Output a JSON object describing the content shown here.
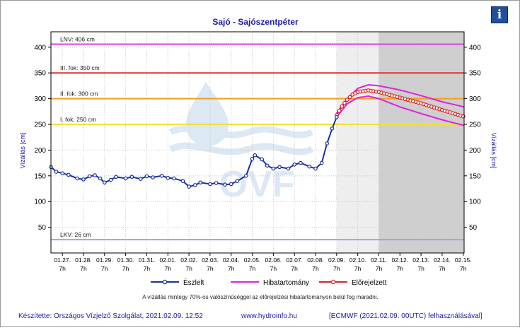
{
  "page": {
    "footer_left": "Készítette: Országos Vízjelző Szolgálat, 2021.02.09. 12:52",
    "footer_middle": "www.hydroinfo.hu",
    "footer_right": "[ECMWF (2021.02.09. 00UTC) felhasználásával]",
    "info_icon": "info-icon",
    "watermark": "OVF"
  },
  "chart_data": {
    "type": "line",
    "title": "Sajó - Sajószentpéter",
    "ylabel_left": "Vízállás [cm]",
    "ylabel_right": "Vízállás [cm]",
    "ylim": [
      0,
      430
    ],
    "yticks": [
      50,
      100,
      150,
      200,
      250,
      300,
      350,
      400
    ],
    "x_range_days": [
      "2021-01-26 18:00",
      "2021-02-15 08:00"
    ],
    "x_tick_labels": [
      "01.27.",
      "01.28.",
      "01.29.",
      "01.30.",
      "01.31.",
      "02.01.",
      "02.02.",
      "02.03.",
      "02.04.",
      "02.05.",
      "02.06.",
      "02.07.",
      "02.08.",
      "02.09.",
      "02.10.",
      "02.11.",
      "02.12.",
      "02.13.",
      "02.14.",
      "02.15."
    ],
    "x_tick_hour": "7h",
    "thresholds": [
      {
        "label": "LNV: 406 cm",
        "value": 406,
        "color": "#e040e0"
      },
      {
        "label": "III. fok: 350 cm",
        "value": 350,
        "color": "#e03030"
      },
      {
        "label": "II. fok: 300 cm",
        "value": 300,
        "color": "#f0a020"
      },
      {
        "label": "I. fok: 250 cm",
        "value": 250,
        "color": "#f0e040"
      },
      {
        "label": "LKV: 26 cm",
        "value": 26,
        "color": "#a0a0f0"
      }
    ],
    "shading": [
      {
        "from": "2021-02-09 07:00",
        "to": "2021-02-11 07:00",
        "color": "#eeeeee"
      },
      {
        "from": "2021-02-11 07:00",
        "to": "2021-02-15 08:00",
        "color": "#cfcfcf"
      }
    ],
    "series": [
      {
        "name": "Észlelt",
        "color": "#1a2fa0",
        "points": [
          [
            "2021-01-26 18:00",
            167
          ],
          [
            "2021-01-27 00:00",
            158
          ],
          [
            "2021-01-27 07:00",
            155
          ],
          [
            "2021-01-27 14:00",
            152
          ],
          [
            "2021-01-28 00:00",
            145
          ],
          [
            "2021-01-28 07:00",
            143
          ],
          [
            "2021-01-28 14:00",
            149
          ],
          [
            "2021-01-28 20:00",
            151
          ],
          [
            "2021-01-29 02:00",
            145
          ],
          [
            "2021-01-29 07:00",
            137
          ],
          [
            "2021-01-29 14:00",
            142
          ],
          [
            "2021-01-29 20:00",
            148
          ],
          [
            "2021-01-30 07:00",
            145
          ],
          [
            "2021-01-30 14:00",
            148
          ],
          [
            "2021-01-31 00:00",
            144
          ],
          [
            "2021-01-31 07:00",
            149
          ],
          [
            "2021-01-31 14:00",
            147
          ],
          [
            "2021-02-01 00:00",
            150
          ],
          [
            "2021-02-01 07:00",
            146
          ],
          [
            "2021-02-01 14:00",
            145
          ],
          [
            "2021-02-02 00:00",
            140
          ],
          [
            "2021-02-02 07:00",
            129
          ],
          [
            "2021-02-02 14:00",
            132
          ],
          [
            "2021-02-02 20:00",
            137
          ],
          [
            "2021-02-03 07:00",
            134
          ],
          [
            "2021-02-03 14:00",
            136
          ],
          [
            "2021-02-04 00:00",
            133
          ],
          [
            "2021-02-04 07:00",
            134
          ],
          [
            "2021-02-04 14:00",
            140
          ],
          [
            "2021-02-05 00:00",
            150
          ],
          [
            "2021-02-05 07:00",
            183
          ],
          [
            "2021-02-05 10:00",
            190
          ],
          [
            "2021-02-05 18:00",
            182
          ],
          [
            "2021-02-06 00:00",
            170
          ],
          [
            "2021-02-06 07:00",
            164
          ],
          [
            "2021-02-06 14:00",
            167
          ],
          [
            "2021-02-07 00:00",
            164
          ],
          [
            "2021-02-07 07:00",
            172
          ],
          [
            "2021-02-07 14:00",
            175
          ],
          [
            "2021-02-08 00:00",
            168
          ],
          [
            "2021-02-08 07:00",
            164
          ],
          [
            "2021-02-08 14:00",
            175
          ],
          [
            "2021-02-08 20:00",
            213
          ],
          [
            "2021-02-09 02:00",
            242
          ],
          [
            "2021-02-09 07:00",
            264
          ]
        ]
      },
      {
        "name": "Hibatartomány",
        "color": "#e020e0",
        "upper": [
          [
            "2021-02-09 07:00",
            272
          ],
          [
            "2021-02-09 19:00",
            300
          ],
          [
            "2021-02-10 07:00",
            320
          ],
          [
            "2021-02-10 19:00",
            327
          ],
          [
            "2021-02-11 07:00",
            325
          ],
          [
            "2021-02-12 07:00",
            317
          ],
          [
            "2021-02-13 07:00",
            306
          ],
          [
            "2021-02-14 07:00",
            294
          ],
          [
            "2021-02-15 08:00",
            284
          ]
        ],
        "lower": [
          [
            "2021-02-09 07:00",
            264
          ],
          [
            "2021-02-09 19:00",
            290
          ],
          [
            "2021-02-10 07:00",
            302
          ],
          [
            "2021-02-10 19:00",
            305
          ],
          [
            "2021-02-11 07:00",
            300
          ],
          [
            "2021-02-12 07:00",
            284
          ],
          [
            "2021-02-13 07:00",
            271
          ],
          [
            "2021-02-14 07:00",
            259
          ],
          [
            "2021-02-15 08:00",
            248
          ]
        ]
      },
      {
        "name": "Előrejelzett",
        "color": "#e02020",
        "points": [
          [
            "2021-02-09 07:00",
            268
          ],
          [
            "2021-02-09 13:00",
            285
          ],
          [
            "2021-02-09 19:00",
            298
          ],
          [
            "2021-02-10 01:00",
            308
          ],
          [
            "2021-02-10 07:00",
            313
          ],
          [
            "2021-02-10 19:00",
            316
          ],
          [
            "2021-02-11 07:00",
            313
          ],
          [
            "2021-02-12 07:00",
            302
          ],
          [
            "2021-02-13 07:00",
            291
          ],
          [
            "2021-02-14 07:00",
            278
          ],
          [
            "2021-02-15 08:00",
            265
          ]
        ]
      }
    ],
    "legend_placement": "bottom",
    "note": "A vízállás mintegy 70%-os valószínűséggel az előrejelzési hibatartományon belül fog maradni."
  }
}
